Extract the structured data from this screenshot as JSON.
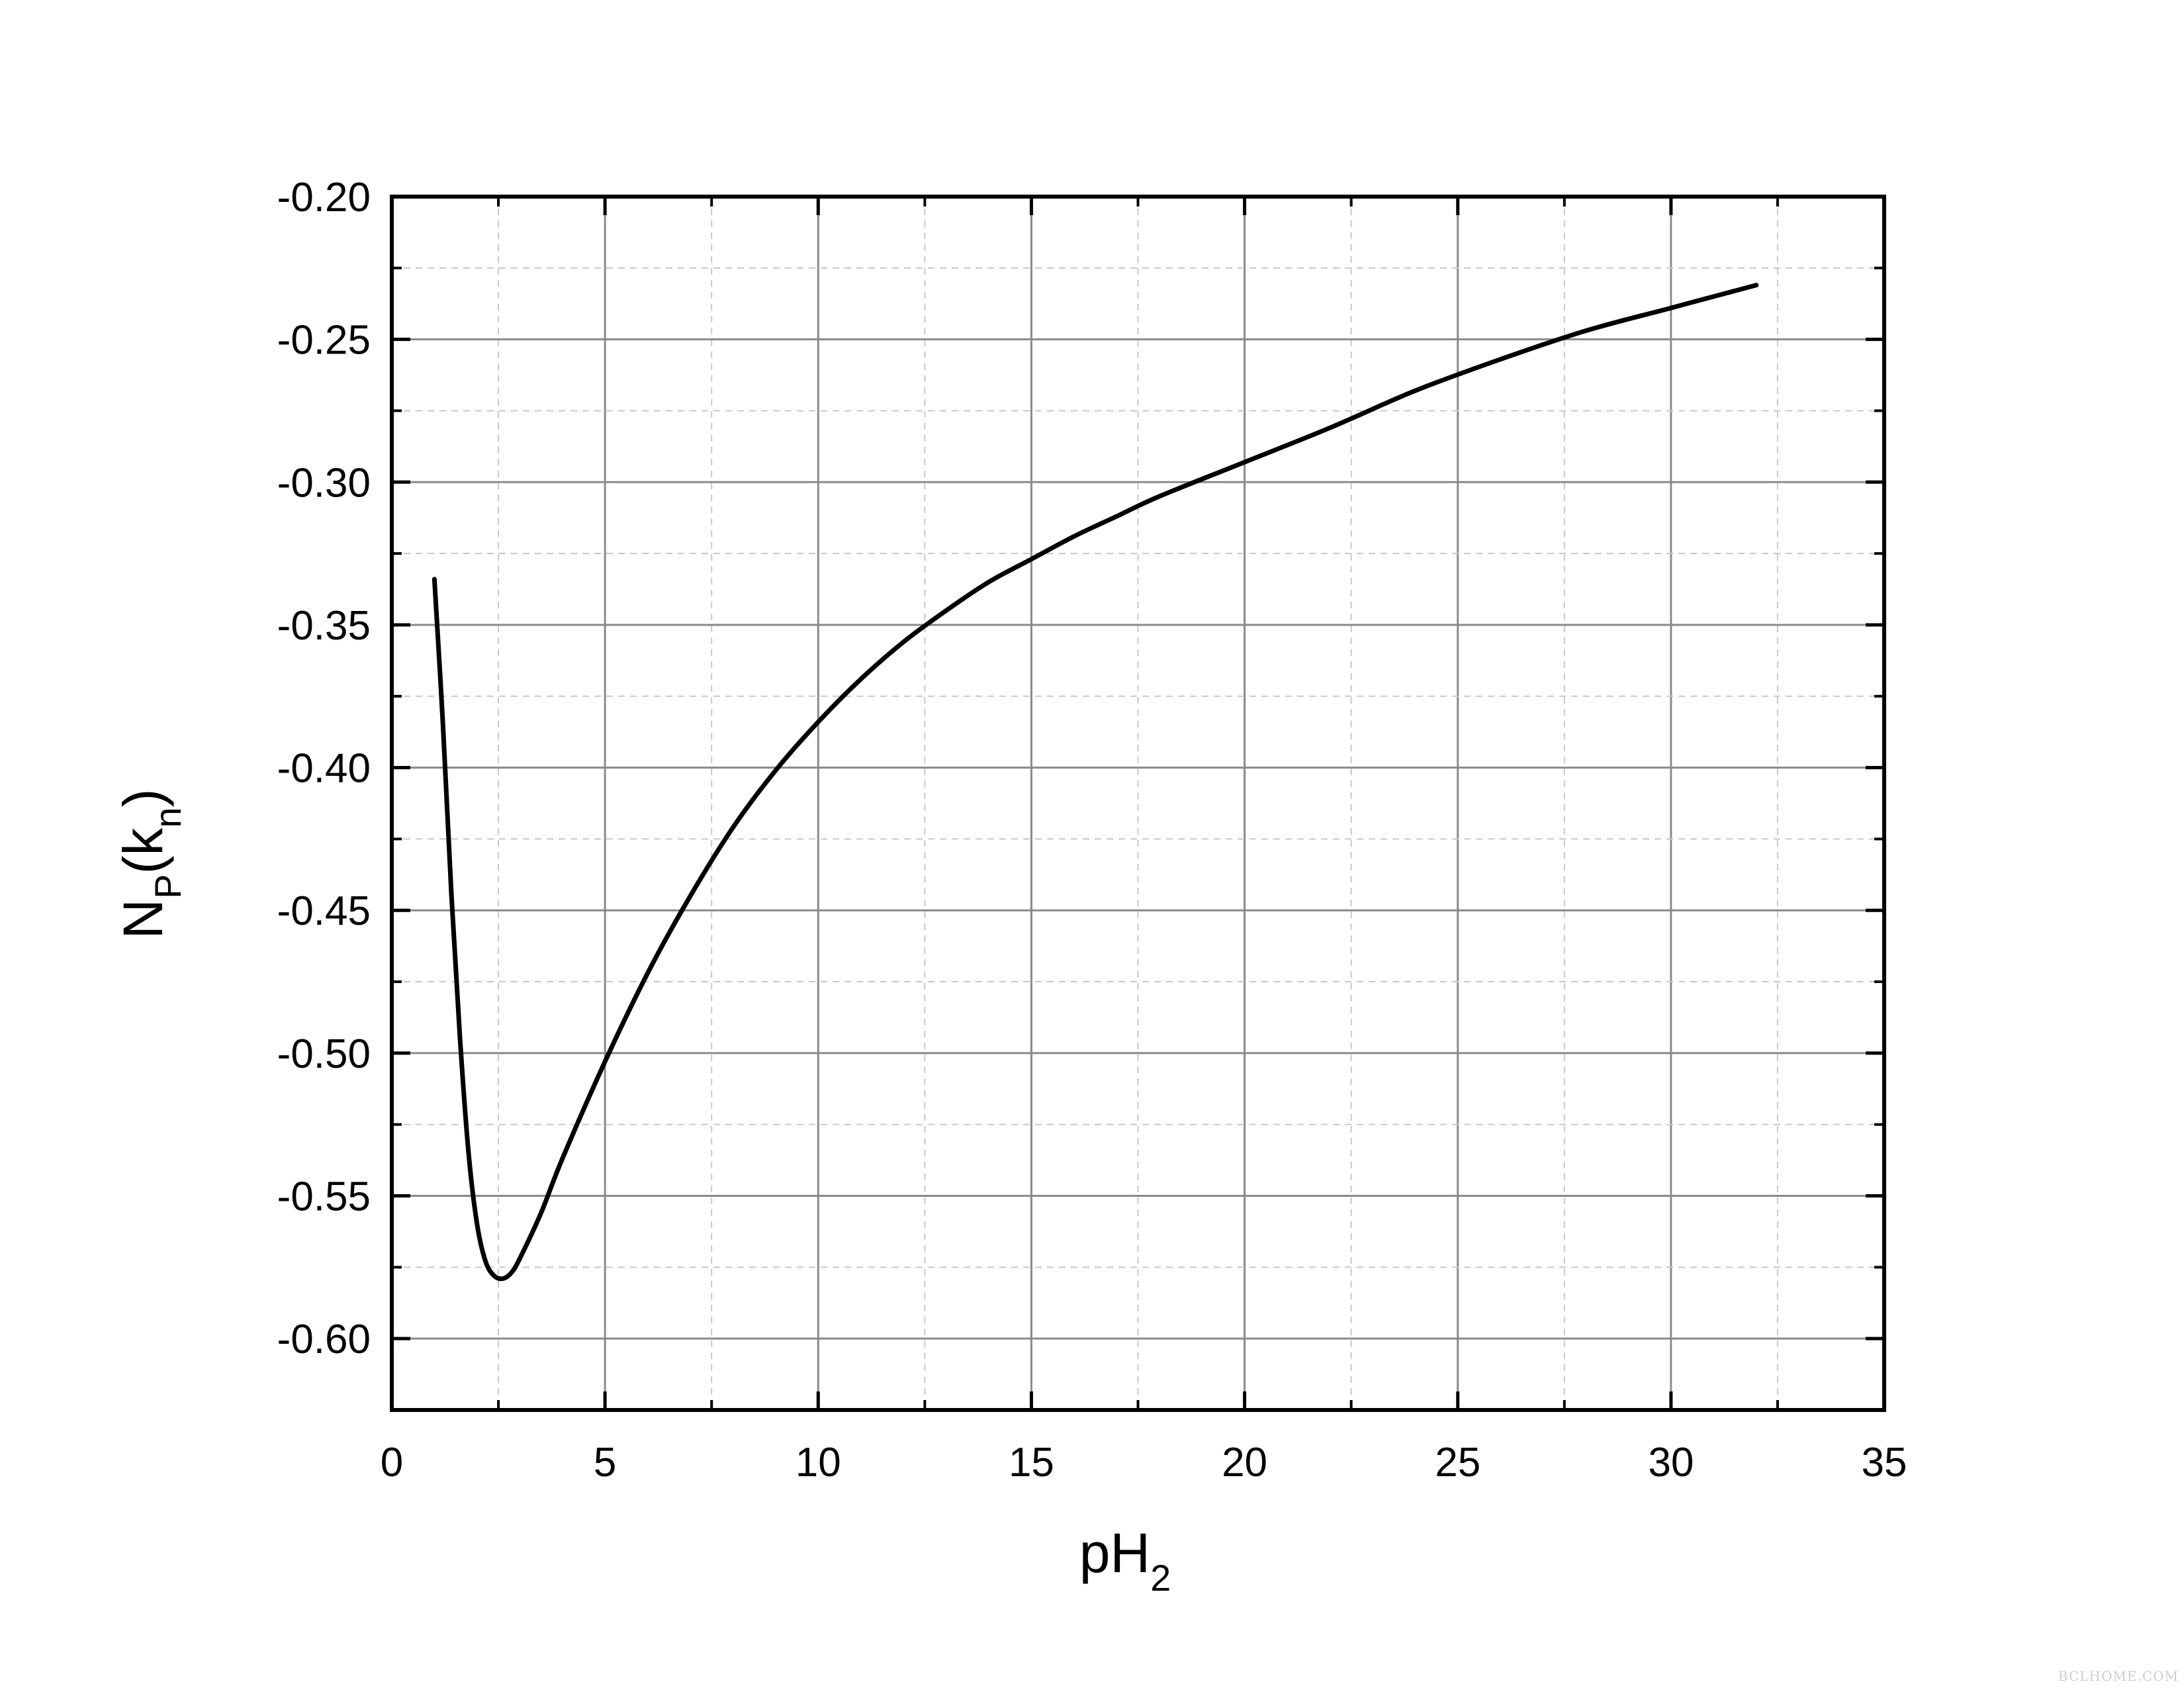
{
  "chart_data": {
    "type": "line",
    "xlabel": {
      "main": "pH",
      "sub": "2"
    },
    "ylabel": {
      "main": "N",
      "sub1": "P",
      "mid": "(k",
      "sub2": "n",
      "end": ")"
    },
    "xlim": [
      0,
      35
    ],
    "ylim": [
      -0.625,
      -0.2
    ],
    "xticks": [
      "0",
      "5",
      "10",
      "15",
      "20",
      "25",
      "30",
      "35"
    ],
    "yticks": [
      "-0.20",
      "-0.25",
      "-0.30",
      "-0.35",
      "-0.40",
      "-0.45",
      "-0.50",
      "-0.55",
      "-0.60"
    ],
    "grid": true,
    "series": [
      {
        "color": "#000000",
        "x": [
          1.0,
          1.2,
          1.4,
          1.6,
          1.8,
          2.0,
          2.2,
          2.4,
          2.6,
          2.8,
          3.0,
          3.5,
          4.0,
          5.0,
          6.0,
          7.0,
          8.0,
          9.0,
          10.0,
          11.0,
          12.0,
          13.0,
          14.0,
          15.0,
          16.0,
          17.0,
          18.0,
          20.0,
          22.0,
          24.0,
          26.0,
          28.0,
          30.0,
          32.0
        ],
        "y": [
          -0.334,
          -0.385,
          -0.445,
          -0.495,
          -0.535,
          -0.56,
          -0.573,
          -0.578,
          -0.579,
          -0.577,
          -0.572,
          -0.556,
          -0.537,
          -0.503,
          -0.472,
          -0.445,
          -0.421,
          -0.401,
          -0.384,
          -0.369,
          -0.356,
          -0.345,
          -0.335,
          -0.327,
          -0.319,
          -0.312,
          -0.305,
          -0.293,
          -0.281,
          -0.268,
          -0.257,
          -0.247,
          -0.239,
          -0.231
        ]
      }
    ]
  },
  "watermark": "BCLHOME.COM"
}
